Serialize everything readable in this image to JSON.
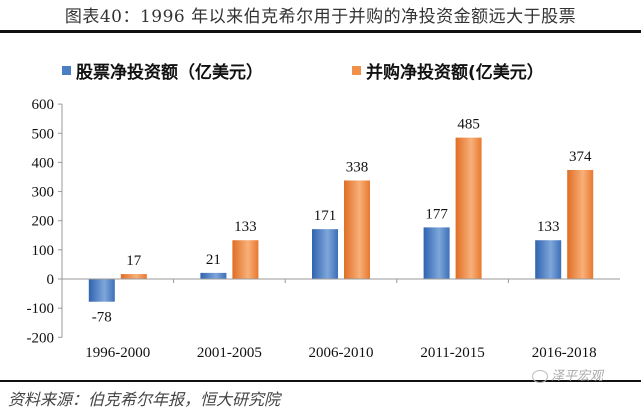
{
  "header": {
    "title": "图表40：1996 年以来伯克希尔用于并购的净投资金额远大于股票"
  },
  "legend": {
    "items": [
      {
        "label": "股票净投资额（亿美元）",
        "color": "#4a7fc4"
      },
      {
        "label": "并购净投资额(亿美元）",
        "color": "#f0914a"
      }
    ]
  },
  "footer": {
    "source": "资料来源：伯克希尔年报，恒大研究院",
    "watermark": "泽平宏观"
  },
  "colors": {
    "series_blue": "#4a7fc4",
    "series_orange": "#f0914a",
    "axis": "#999999"
  },
  "chart_data": {
    "type": "bar",
    "title": "1996 年以来伯克希尔用于并购的净投资金额远大于股票",
    "xlabel": "",
    "ylabel": "",
    "categories": [
      "1996-2000",
      "2001-2005",
      "2006-2010",
      "2011-2015",
      "2016-2018"
    ],
    "series": [
      {
        "name": "股票净投资额（亿美元）",
        "values": [
          -78,
          21,
          171,
          177,
          133
        ]
      },
      {
        "name": "并购净投资额(亿美元）",
        "values": [
          17,
          133,
          338,
          485,
          374
        ]
      }
    ],
    "ylim": [
      -200,
      600
    ],
    "yticks": [
      600,
      500,
      400,
      300,
      200,
      100,
      0,
      -100,
      -200
    ],
    "ytick_labels": [
      "600",
      "500",
      "400",
      "300",
      "200",
      "100",
      "0",
      "-100",
      "-200"
    ],
    "data_labels": true,
    "grid": false,
    "legend_position": "top"
  }
}
